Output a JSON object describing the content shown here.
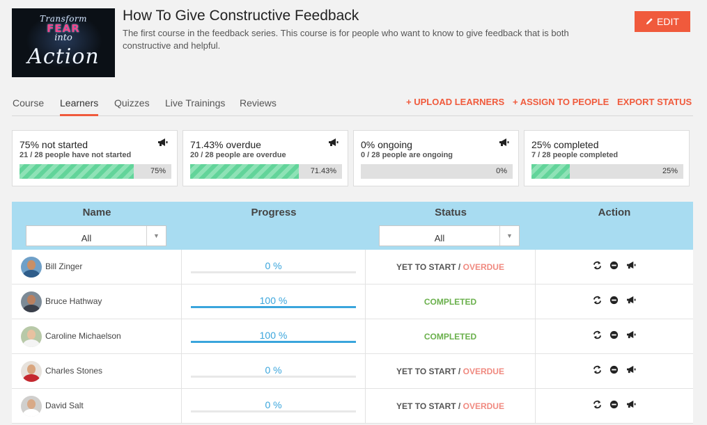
{
  "course": {
    "thumbnail_lines": [
      "Transform",
      "FEAR",
      "into",
      "Action"
    ],
    "title": "How To Give Constructive Feedback",
    "description": "The first course in the feedback series. This course is for people who want to know to give feedback that is both constructive and helpful.",
    "edit_label": "EDIT"
  },
  "tabs": [
    {
      "label": "Course",
      "active": false
    },
    {
      "label": "Learners",
      "active": true
    },
    {
      "label": "Quizzes",
      "active": false
    },
    {
      "label": "Live Trainings",
      "active": false
    },
    {
      "label": "Reviews",
      "active": false
    }
  ],
  "tab_actions": [
    "+ UPLOAD LEARNERS",
    "+ ASSIGN TO PEOPLE",
    "EXPORT STATUS"
  ],
  "stats": [
    {
      "headline": "75% not started",
      "detail": "21 / 28 people have not started",
      "percent_label": "75%",
      "fill": 0.75
    },
    {
      "headline": "71.43% overdue",
      "detail": "20 / 28 people are overdue",
      "percent_label": "71.43%",
      "fill": 0.7143
    },
    {
      "headline": "0% ongoing",
      "detail": "0 / 28 people are ongoing",
      "percent_label": "0%",
      "fill": 0
    },
    {
      "headline": "25% completed",
      "detail": "7 / 28 people completed",
      "percent_label": "25%",
      "fill": 0.25
    }
  ],
  "table": {
    "headers": {
      "name": "Name",
      "progress": "Progress",
      "status": "Status",
      "action": "Action"
    },
    "name_filter": "All",
    "status_filter": "All",
    "rows": [
      {
        "name": "Bill Zinger",
        "progress": "0 %",
        "progress_value": 0,
        "status": "YET TO START",
        "status_extra": "OVERDUE",
        "done": false
      },
      {
        "name": "Bruce Hathway",
        "progress": "100 %",
        "progress_value": 1,
        "status": "COMPLETED",
        "status_extra": "",
        "done": true
      },
      {
        "name": "Caroline Michaelson",
        "progress": "100 %",
        "progress_value": 1,
        "status": "COMPLETED",
        "status_extra": "",
        "done": true
      },
      {
        "name": "Charles Stones",
        "progress": "0 %",
        "progress_value": 0,
        "status": "YET TO START",
        "status_extra": "OVERDUE",
        "done": false
      },
      {
        "name": "David Salt",
        "progress": "0 %",
        "progress_value": 0,
        "status": "YET TO START",
        "status_extra": "OVERDUE",
        "done": false
      }
    ]
  },
  "colors": {
    "accent": "#f05a3c",
    "header_bg": "#a8dcf1",
    "progress": "#3aa5dc",
    "completed": "#6ab04c",
    "overdue": "#f08a80"
  }
}
